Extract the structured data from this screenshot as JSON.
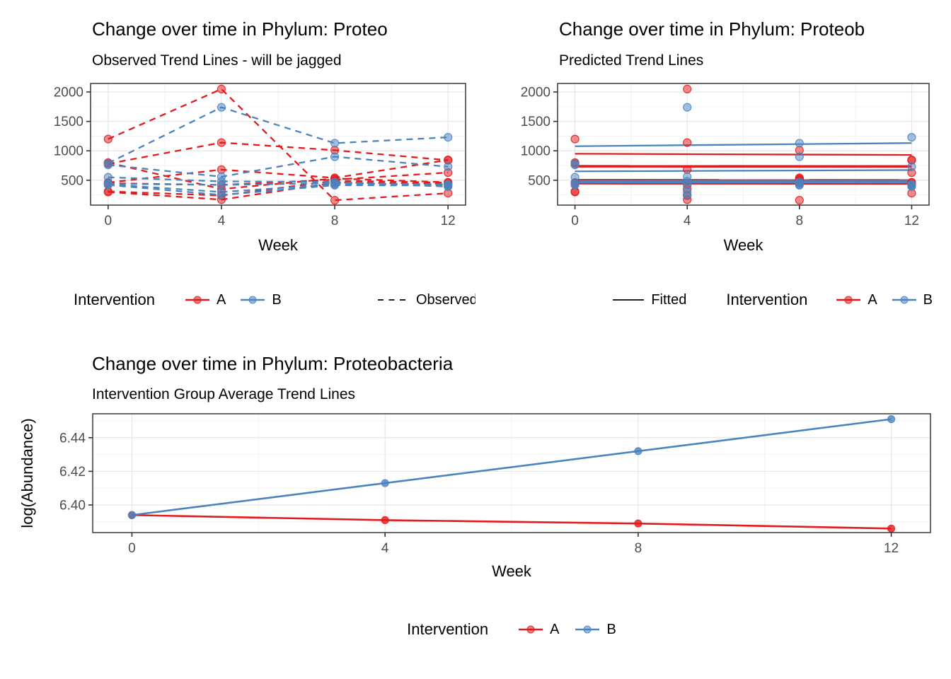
{
  "palette": {
    "red": "#E41A1C",
    "blue": "#4A84BF",
    "grid_major": "#E4E4E4",
    "grid_minor": "#F2F2F2",
    "panel_border": "#2B2B2B",
    "tick_text": "#4D4D4D"
  },
  "legends": {
    "observed": {
      "title": "Intervention",
      "item_a": "A",
      "item_b": "B",
      "linetype_label": "Observed"
    },
    "fitted": {
      "fitted_label": "Fitted",
      "title": "Intervention",
      "item_a": "A",
      "item_b": "B"
    },
    "average": {
      "title": "Intervention",
      "item_a": "A",
      "item_b": "B"
    }
  },
  "chart_data": [
    {
      "type": "line",
      "title": "Change over time in Phylum: Proteo",
      "subtitle": "Observed Trend Lines - will be jagged",
      "xlabel": "Week",
      "line_style": "dashed",
      "x": [
        0,
        4,
        8,
        12
      ],
      "x_ticks": [
        0,
        4,
        8,
        12
      ],
      "x_tick_labels": [
        "0",
        "4",
        "8",
        "12"
      ],
      "x_minor": [
        2,
        6,
        10
      ],
      "y_ticks": [
        500,
        1000,
        1500,
        2000
      ],
      "y_tick_labels": [
        "500",
        "1000",
        "1500",
        "2000"
      ],
      "y_minor": [
        250,
        750,
        1250,
        1750
      ],
      "xlim": [
        -0.62,
        12.62
      ],
      "ylim": [
        77,
        2145
      ],
      "legend_position": "bottom",
      "grid": true,
      "subjects": [
        {
          "group": "A",
          "values": [
            1200,
            2050,
            160,
            280
          ]
        },
        {
          "group": "A",
          "values": [
            780,
            1140,
            1010,
            840
          ]
        },
        {
          "group": "A",
          "values": [
            460,
            680,
            540,
            845
          ]
        },
        {
          "group": "A",
          "values": [
            450,
            420,
            510,
            630
          ]
        },
        {
          "group": "A",
          "values": [
            310,
            240,
            490,
            460
          ]
        },
        {
          "group": "A",
          "values": [
            300,
            170,
            460,
            440
          ]
        },
        {
          "group": "A",
          "values": [
            800,
            350,
            530,
            465
          ]
        },
        {
          "group": "B",
          "values": [
            790,
            1740,
            1130,
            1230
          ]
        },
        {
          "group": "B",
          "values": [
            760,
            560,
            900,
            730
          ]
        },
        {
          "group": "B",
          "values": [
            550,
            480,
            470,
            390
          ]
        },
        {
          "group": "B",
          "values": [
            440,
            420,
            450,
            430
          ]
        },
        {
          "group": "B",
          "values": [
            430,
            300,
            430,
            420
          ]
        },
        {
          "group": "B",
          "values": [
            420,
            250,
            415,
            410
          ]
        }
      ]
    },
    {
      "type": "scatter+line",
      "title": "Change over time in Phylum: Proteob",
      "subtitle": "Predicted Trend Lines",
      "xlabel": "Week",
      "x": [
        0,
        4,
        8,
        12
      ],
      "x_ticks": [
        0,
        4,
        8,
        12
      ],
      "x_tick_labels": [
        "0",
        "4",
        "8",
        "12"
      ],
      "x_minor": [
        2,
        6,
        10
      ],
      "y_ticks": [
        500,
        1000,
        1500,
        2000
      ],
      "y_tick_labels": [
        "500",
        "1000",
        "1500",
        "2000"
      ],
      "y_minor": [
        250,
        750,
        1250,
        1750
      ],
      "xlim": [
        -0.62,
        12.62
      ],
      "ylim": [
        77,
        2145
      ],
      "legend_position": "bottom",
      "grid": true,
      "fitted": {
        "A": [
          [
            950,
            930
          ],
          [
            745,
            742
          ],
          [
            730,
            727
          ],
          [
            508,
            505
          ],
          [
            442,
            438
          ]
        ],
        "B": [
          [
            1078,
            1132
          ],
          [
            651,
            673
          ],
          [
            489,
            492
          ],
          [
            477,
            479
          ],
          [
            463,
            465
          ]
        ]
      }
    },
    {
      "type": "line",
      "title": "Change over time in Phylum: Proteobacteria",
      "subtitle": "Intervention Group Average Trend Lines",
      "xlabel": "Week",
      "ylabel": "log(Abundance)",
      "x": [
        0,
        4,
        8,
        12
      ],
      "x_ticks": [
        0,
        4,
        8,
        12
      ],
      "x_tick_labels": [
        "0",
        "4",
        "8",
        "12"
      ],
      "x_minor": [
        2,
        6,
        10
      ],
      "y_ticks": [
        6.4,
        6.42,
        6.44
      ],
      "y_tick_labels": [
        "6.40",
        "6.42",
        "6.44"
      ],
      "y_minor": [
        6.39,
        6.41,
        6.43,
        6.45
      ],
      "xlim": [
        -0.62,
        12.62
      ],
      "ylim": [
        6.3836,
        6.4542
      ],
      "legend_position": "bottom",
      "grid": true,
      "series": [
        {
          "name": "A",
          "values": [
            6.394,
            6.391,
            6.389,
            6.386
          ]
        },
        {
          "name": "B",
          "values": [
            6.394,
            6.413,
            6.432,
            6.451
          ]
        }
      ]
    }
  ]
}
